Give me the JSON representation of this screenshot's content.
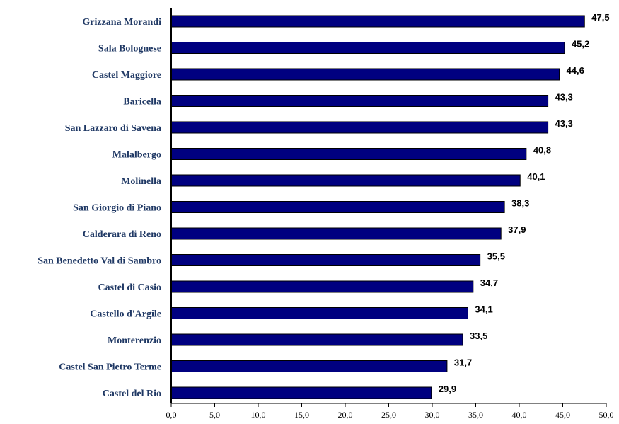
{
  "colors": {
    "bar_fill": "#000080",
    "bar_stroke": "#000000",
    "category_text": "#1f3864",
    "axis": "#000000"
  },
  "chart_data": {
    "type": "bar",
    "orientation": "horizontal",
    "title": "",
    "xlabel": "",
    "ylabel": "",
    "categories": [
      "Grizzana Morandi",
      "Sala Bolognese",
      "Castel Maggiore",
      "Baricella",
      "San Lazzaro di Savena",
      "Malalbergo",
      "Molinella",
      "San Giorgio di Piano",
      "Calderara di Reno",
      "San Benedetto Val di Sambro",
      "Castel di Casio",
      "Castello d'Argile",
      "Monterenzio",
      "Castel San Pietro Terme",
      "Castel del Rio"
    ],
    "values": [
      47.5,
      45.2,
      44.6,
      43.3,
      43.3,
      40.8,
      40.1,
      38.3,
      37.9,
      35.5,
      34.7,
      34.1,
      33.5,
      31.7,
      29.9
    ],
    "value_labels": [
      "47,5",
      "45,2",
      "44,6",
      "43,3",
      "43,3",
      "40,8",
      "40,1",
      "38,3",
      "37,9",
      "35,5",
      "34,7",
      "34,1",
      "33,5",
      "31,7",
      "29,9"
    ],
    "xlim": [
      0,
      50
    ],
    "x_ticks": [
      0,
      5,
      10,
      15,
      20,
      25,
      30,
      35,
      40,
      45,
      50
    ],
    "x_tick_labels": [
      "0,0",
      "5,0",
      "10,0",
      "15,0",
      "20,0",
      "25,0",
      "30,0",
      "35,0",
      "40,0",
      "45,0",
      "50,0"
    ],
    "grid": false,
    "legend": "none"
  }
}
